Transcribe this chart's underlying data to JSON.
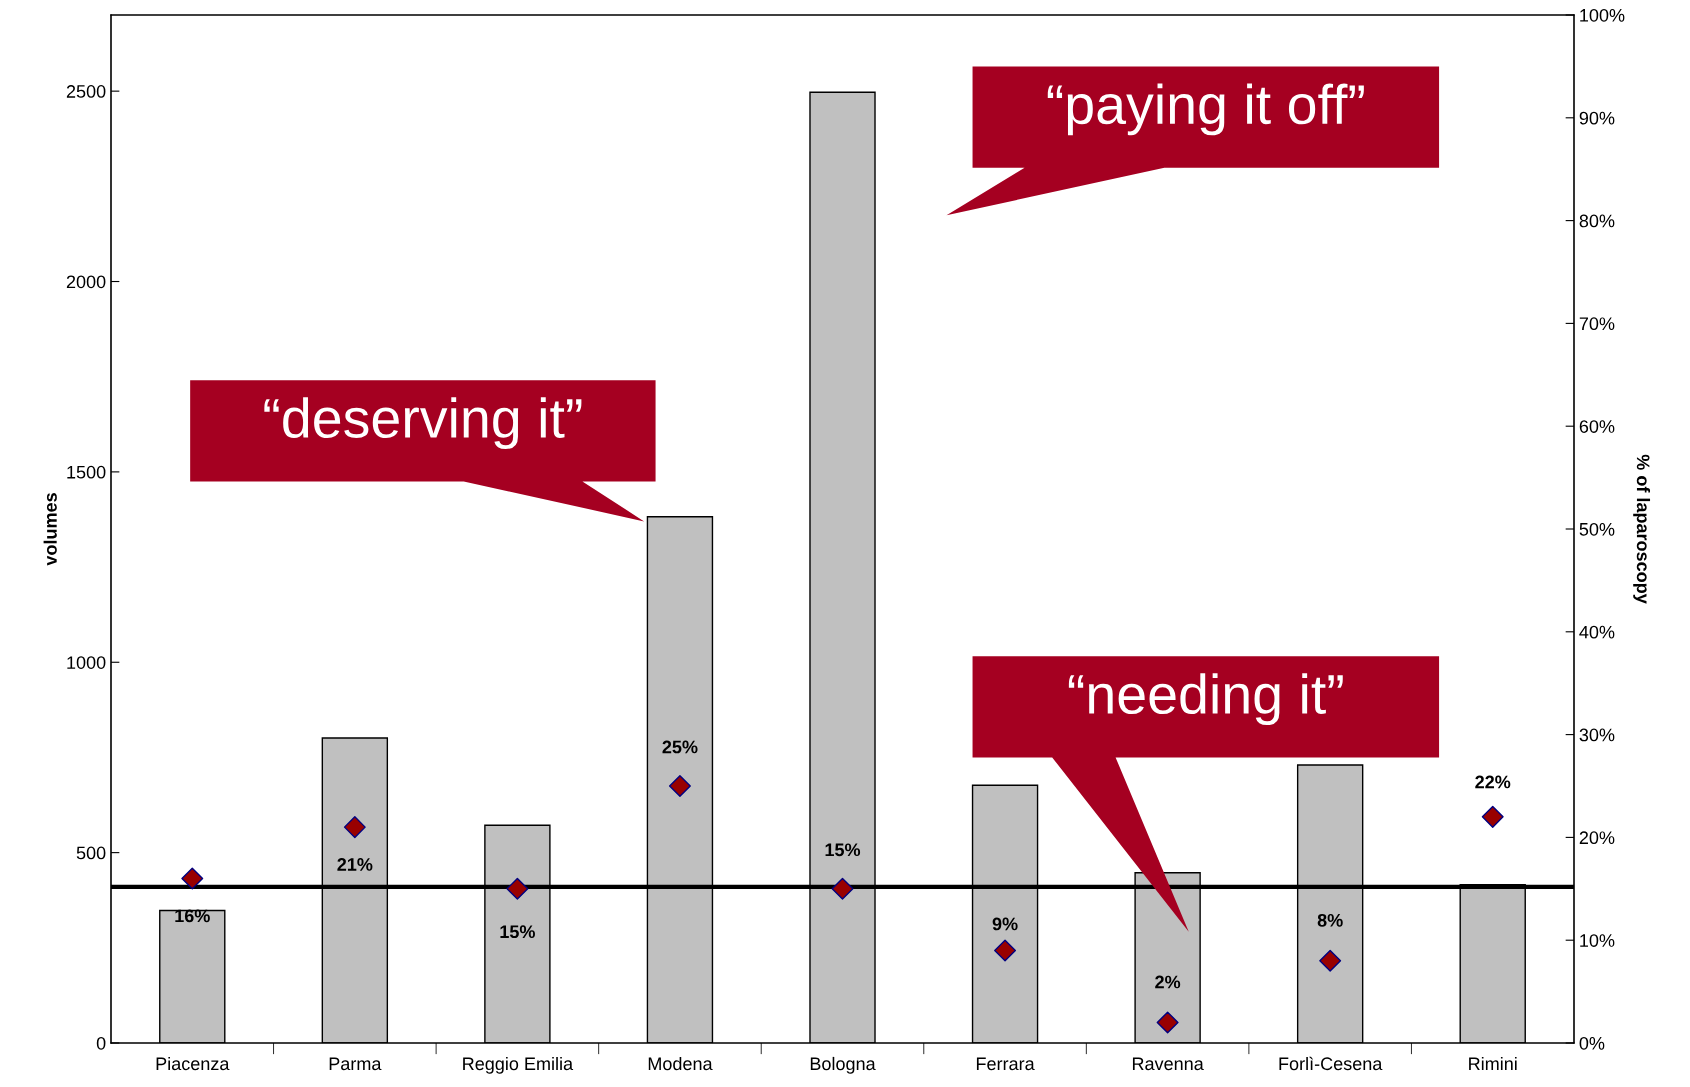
{
  "chart_data": {
    "type": "bar",
    "ylabel": "volumes",
    "y2label": "% of laparoscopy",
    "categories": [
      "Piacenza",
      "Parma",
      "Reggio Emilia",
      "Modena",
      "Bologna",
      "Ferrara",
      "Ravenna",
      "Forlì-Cesena",
      "Rimini"
    ],
    "series": [
      {
        "color": "#c0c0c0",
        "values": [
          348,
          801,
          572,
          1382,
          2497,
          677,
          447,
          730,
          416
        ]
      },
      {
        "type": "scatter",
        "axis": "y2",
        "color": "#990000",
        "marker": "diamond",
        "values": [
          16,
          21,
          15,
          25,
          15,
          9,
          2,
          8,
          22
        ],
        "value_labels": [
          "16%",
          "21%",
          "15%",
          "25%",
          "15%",
          "9%",
          "2%",
          "8%",
          "22%"
        ]
      }
    ],
    "ylim": [
      0,
      2700
    ],
    "yticks": [
      0,
      500,
      1000,
      1500,
      2000,
      2500
    ],
    "y2lim": [
      0,
      100
    ],
    "y2ticks": [
      {
        "value": 0,
        "label": "0%"
      },
      {
        "value": 10,
        "label": "10%"
      },
      {
        "value": 20,
        "label": "20%"
      },
      {
        "value": 30,
        "label": "30%"
      },
      {
        "value": 40,
        "label": "40%"
      },
      {
        "value": 50,
        "label": "50%"
      },
      {
        "value": 60,
        "label": "60%"
      },
      {
        "value": 70,
        "label": "70%"
      },
      {
        "value": 80,
        "label": "80%"
      },
      {
        "value": 90,
        "label": "90%"
      },
      {
        "value": 100,
        "label": "100%"
      }
    ],
    "ref_lines": [
      {
        "axis": "y",
        "value": 410,
        "color": "#000000"
      }
    ],
    "annotations": [
      "“paying it off”",
      "“deserving it”",
      "“needing it”"
    ],
    "grid": false,
    "legend": false
  }
}
